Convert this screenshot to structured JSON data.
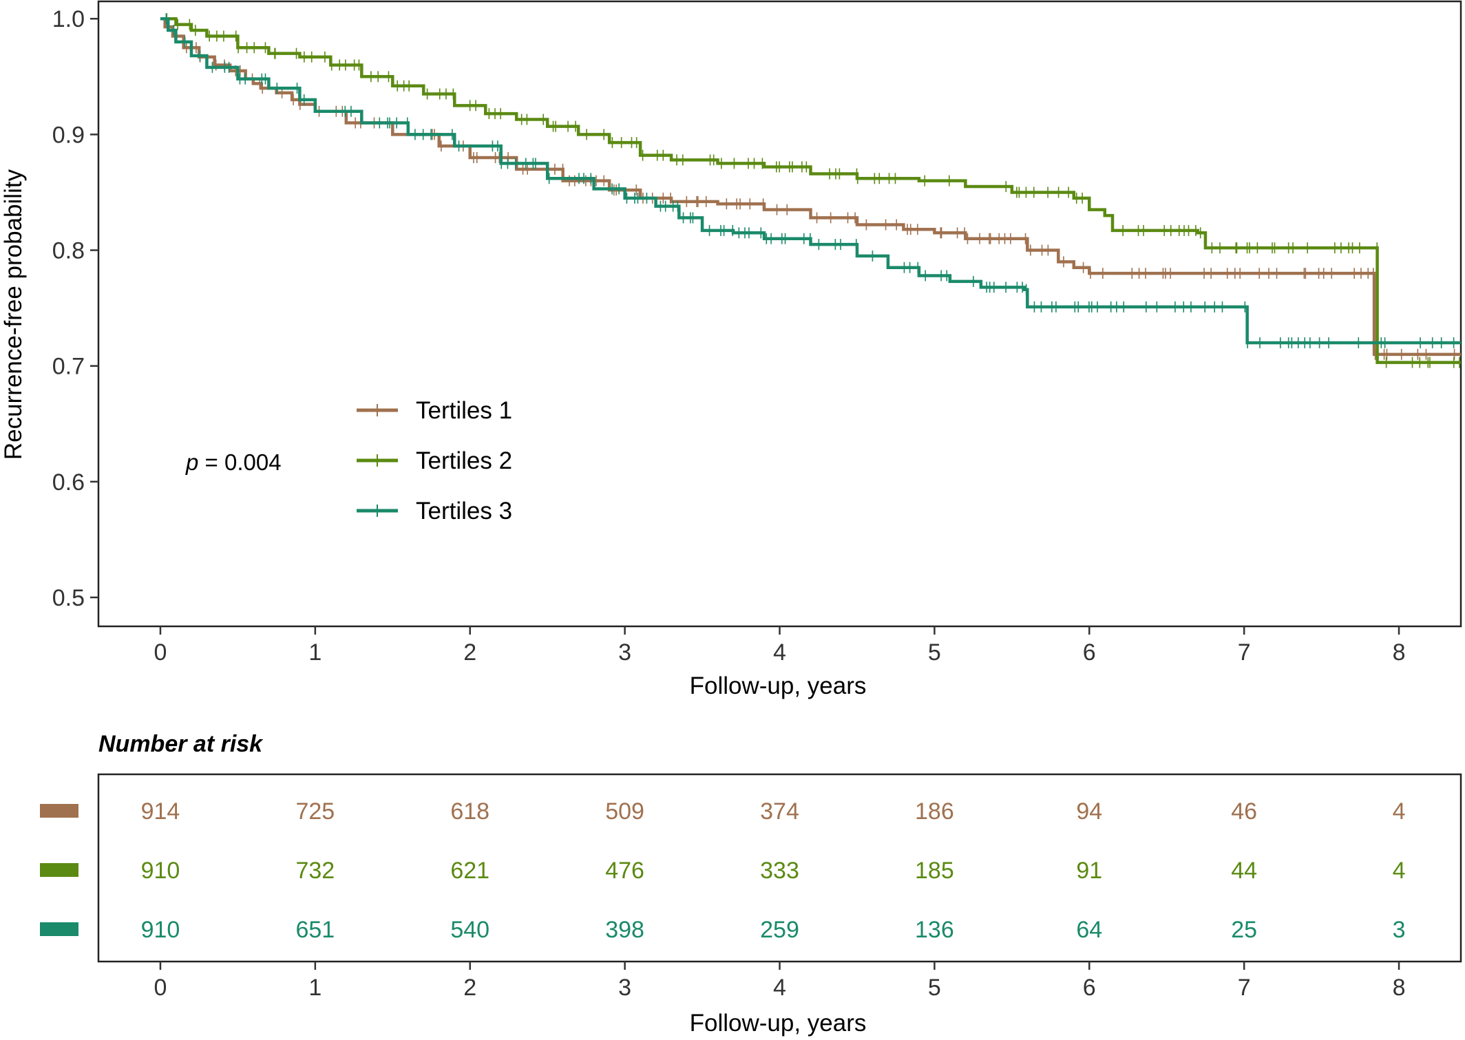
{
  "chart_data": [
    {
      "type": "line",
      "subtype": "kaplan-meier step curves",
      "xlabel": "Follow-up, years",
      "ylabel": "Recurrence-free probability",
      "xlim": [
        -0.4,
        8.4
      ],
      "ylim": [
        0.475,
        1.015
      ],
      "x_ticks": [
        "0",
        "1",
        "2",
        "3",
        "4",
        "5",
        "6",
        "7",
        "8"
      ],
      "y_ticks": [
        "0.5",
        "0.6",
        "0.7",
        "0.8",
        "0.9",
        "1.0"
      ],
      "grid": false,
      "legend_position": "middle-left",
      "annotation": {
        "italic": "p",
        "text": " = 0.004"
      },
      "series": [
        {
          "name": "Tertiles 1",
          "color": "#A0714F",
          "x": [
            0,
            0.03,
            0.08,
            0.15,
            0.25,
            0.35,
            0.45,
            0.55,
            0.6,
            0.65,
            0.75,
            0.85,
            0.9,
            1.0,
            1.2,
            1.5,
            1.8,
            2.0,
            2.3,
            2.6,
            2.9,
            3.1,
            3.3,
            3.6,
            3.9,
            4.2,
            4.5,
            4.8,
            5.0,
            5.2,
            5.6,
            5.8,
            5.9,
            6.0,
            7.0,
            7.83,
            7.84,
            8.4
          ],
          "y": [
            1.0,
            0.993,
            0.985,
            0.975,
            0.967,
            0.96,
            0.955,
            0.948,
            0.944,
            0.94,
            0.936,
            0.93,
            0.926,
            0.92,
            0.91,
            0.9,
            0.89,
            0.88,
            0.87,
            0.86,
            0.852,
            0.845,
            0.842,
            0.84,
            0.835,
            0.828,
            0.822,
            0.818,
            0.815,
            0.81,
            0.8,
            0.79,
            0.785,
            0.78,
            0.78,
            0.78,
            0.71,
            0.71
          ]
        },
        {
          "name": "Tertiles 2",
          "color": "#5B8A12",
          "x": [
            0,
            0.1,
            0.2,
            0.3,
            0.5,
            0.7,
            0.9,
            1.1,
            1.3,
            1.5,
            1.7,
            1.9,
            2.1,
            2.3,
            2.5,
            2.7,
            2.9,
            3.1,
            3.3,
            3.6,
            3.9,
            4.2,
            4.5,
            4.9,
            5.2,
            5.5,
            5.9,
            6.0,
            6.1,
            6.15,
            6.7,
            6.75,
            7.5,
            7.85,
            7.86,
            8.4
          ],
          "y": [
            1.0,
            0.995,
            0.99,
            0.985,
            0.975,
            0.97,
            0.967,
            0.96,
            0.95,
            0.942,
            0.935,
            0.925,
            0.918,
            0.913,
            0.907,
            0.9,
            0.893,
            0.882,
            0.878,
            0.875,
            0.872,
            0.866,
            0.862,
            0.86,
            0.855,
            0.85,
            0.845,
            0.835,
            0.83,
            0.817,
            0.815,
            0.802,
            0.802,
            0.802,
            0.703,
            0.703
          ]
        },
        {
          "name": "Tertiles 3",
          "color": "#1A8A6A",
          "x": [
            0,
            0.05,
            0.1,
            0.2,
            0.3,
            0.5,
            0.7,
            0.9,
            1.0,
            1.3,
            1.6,
            1.9,
            2.2,
            2.5,
            2.8,
            3.0,
            3.2,
            3.35,
            3.5,
            3.7,
            3.9,
            4.2,
            4.5,
            4.7,
            4.9,
            5.1,
            5.3,
            5.58,
            5.6,
            6.0,
            6.5,
            7.0,
            7.02,
            7.5,
            8.4
          ],
          "y": [
            1.0,
            0.99,
            0.98,
            0.968,
            0.958,
            0.948,
            0.94,
            0.93,
            0.92,
            0.91,
            0.9,
            0.89,
            0.875,
            0.862,
            0.853,
            0.845,
            0.838,
            0.828,
            0.817,
            0.815,
            0.81,
            0.805,
            0.795,
            0.785,
            0.778,
            0.773,
            0.768,
            0.766,
            0.751,
            0.751,
            0.751,
            0.751,
            0.72,
            0.72,
            0.72
          ]
        }
      ]
    },
    {
      "type": "table",
      "title": "Number at risk",
      "xlabel": "Follow-up, years",
      "x_ticks": [
        "0",
        "1",
        "2",
        "3",
        "4",
        "5",
        "6",
        "7",
        "8"
      ],
      "rows": [
        {
          "name": "Tertiles 1",
          "color": "#A0714F",
          "values": [
            "914",
            "725",
            "618",
            "509",
            "374",
            "186",
            "94",
            "46",
            "4"
          ]
        },
        {
          "name": "Tertiles 2",
          "color": "#5B8A12",
          "values": [
            "910",
            "732",
            "621",
            "476",
            "333",
            "185",
            "91",
            "44",
            "4"
          ]
        },
        {
          "name": "Tertiles 3",
          "color": "#1A8A6A",
          "values": [
            "910",
            "651",
            "540",
            "398",
            "259",
            "136",
            "64",
            "25",
            "3"
          ]
        }
      ]
    }
  ]
}
